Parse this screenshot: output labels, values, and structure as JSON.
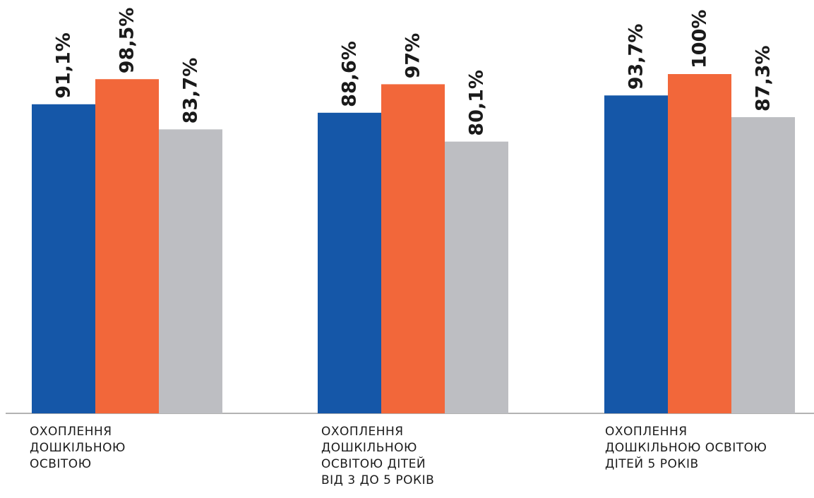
{
  "chart_data": {
    "type": "bar",
    "categories": [
      [
        "ОХОПЛЕННЯ",
        "ДОШКІЛЬНОЮ",
        "ОСВІТОЮ"
      ],
      [
        "ОХОПЛЕННЯ",
        "ДОШКІЛЬНОЮ",
        "ОСВІТОЮ ДІТЕЙ",
        "ВІД 3 ДО 5 РОКІВ"
      ],
      [
        "ОХОПЛЕННЯ",
        "ДОШКІЛЬНОЮ ОСВІТОЮ",
        "ДІТЕЙ 5 РОКІВ"
      ]
    ],
    "series": [
      {
        "values": [
          91.1,
          88.6,
          93.7
        ],
        "labels": [
          "91,1%",
          "88,6%",
          "93,7%"
        ],
        "color": "#1557a8"
      },
      {
        "values": [
          98.5,
          97,
          100
        ],
        "labels": [
          "98,5%",
          "97%",
          "100%"
        ],
        "color": "#f2673a"
      },
      {
        "values": [
          83.7,
          80.1,
          87.3
        ],
        "labels": [
          "83,7%",
          "80,1%",
          "87,3%"
        ],
        "color": "#bdbec2"
      }
    ],
    "ylim": [
      0,
      100
    ],
    "grid": false,
    "legend": "none",
    "baseline_color": "#9a9a9a"
  }
}
